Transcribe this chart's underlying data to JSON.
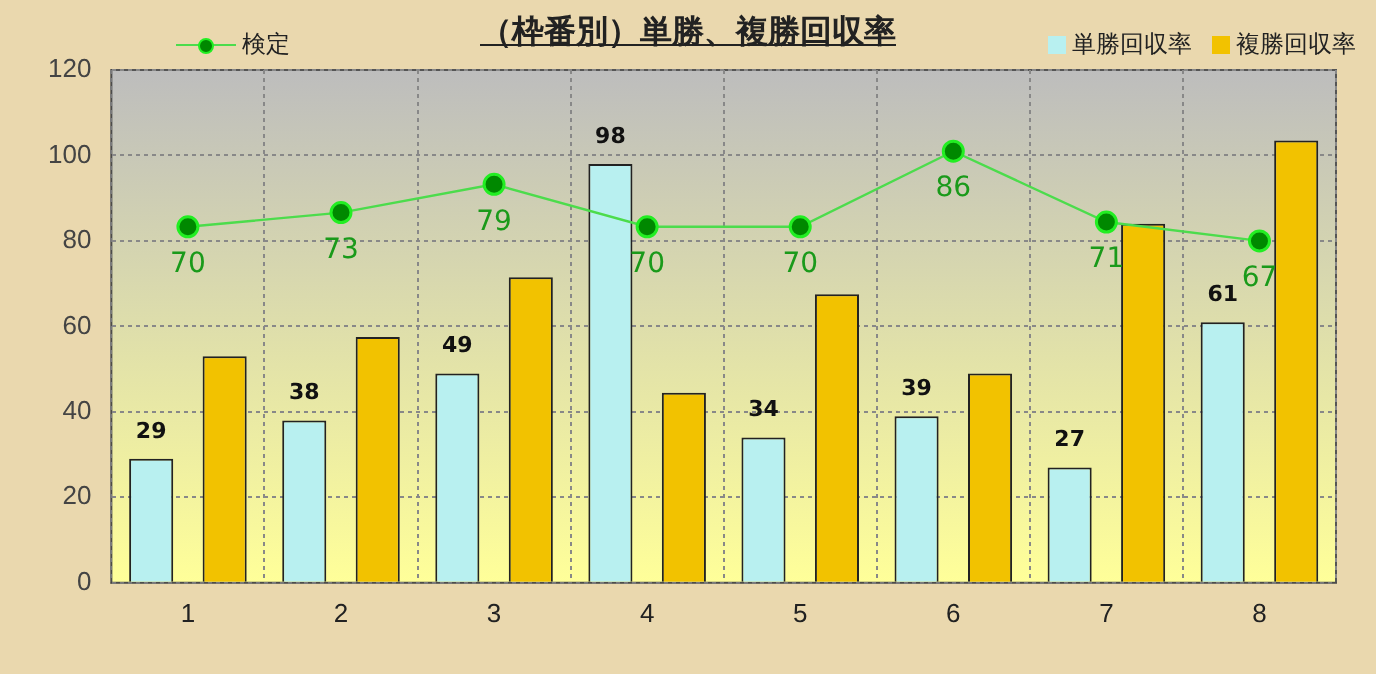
{
  "chart_data": {
    "type": "bar",
    "title": "（枠番別）単勝、複勝回収率",
    "categories": [
      "1",
      "2",
      "3",
      "4",
      "5",
      "6",
      "7",
      "8"
    ],
    "series": [
      {
        "name": "単勝回収率",
        "color": "#b8f0f0",
        "values": [
          29,
          38,
          49,
          98,
          34,
          39,
          27,
          61
        ],
        "value_labels": [
          "29",
          "38",
          "49",
          "98",
          "34",
          "39",
          "27",
          "61"
        ]
      },
      {
        "name": "複勝回収率",
        "color": "#f2c200",
        "values": [
          53,
          57.5,
          71.5,
          44.5,
          67.5,
          49,
          84,
          103.5
        ]
      },
      {
        "name": "検定",
        "type": "line",
        "axis": "y2",
        "color": "#4cdc4c",
        "marker": "circle",
        "values": [
          70,
          73,
          79,
          70,
          70,
          86,
          71,
          67
        ],
        "value_labels": [
          "70",
          "73",
          "79",
          "70",
          "70",
          "86",
          "71",
          "67"
        ]
      }
    ],
    "ylim": [
      0,
      120
    ],
    "yticks": [
      0,
      20,
      40,
      60,
      80,
      100,
      120
    ],
    "y2lim": [
      -5.4,
      103.2
    ],
    "grid": true,
    "legend": "top"
  }
}
